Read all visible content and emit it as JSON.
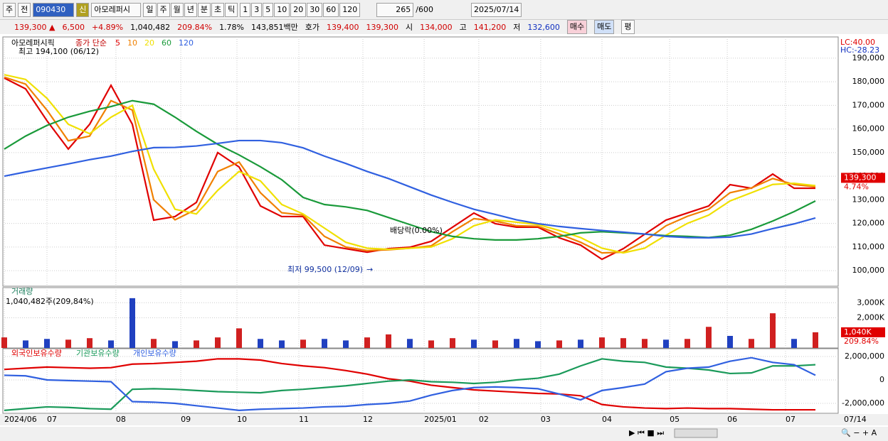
{
  "toolbar": {
    "interval": "주",
    "prev": "전",
    "code": "090430",
    "badge": "신",
    "name": "아모레퍼시",
    "periods": [
      "일",
      "주",
      "월",
      "년",
      "분",
      "초",
      "틱"
    ],
    "units": [
      "1",
      "3",
      "5",
      "10",
      "20",
      "30",
      "60",
      "120"
    ],
    "count": "265",
    "max": "/600",
    "date": "2025/07/14"
  },
  "quote": {
    "price": "139,300 ▲",
    "change": "6,500",
    "rate": "+4.89%",
    "volume": "1,040,482",
    "vol_ratio": "209.84%",
    "turnover": "1.78%",
    "amount": "143,851백만",
    "ask_label": "호가",
    "ask": "139,400",
    "bid": "139,300",
    "open_label": "시",
    "open": "134,000",
    "high_label": "고",
    "high": "141,200",
    "low_label": "저",
    "low": "132,600",
    "buy": "매수",
    "sell": "매도",
    "avg": "평"
  },
  "chart_data": [
    {
      "type": "line",
      "title": "아모레퍼시픽",
      "legend_label": "종가 단순",
      "scale_labels": [
        "LC:40.00",
        "HC:-28.23"
      ],
      "annotations": {
        "high": "최고 194,100 (06/12)",
        "low": "최저 99,500 (12/09)",
        "dividend": "배당락(0.00%)"
      },
      "current": {
        "value": 139300,
        "label": "139,300",
        "change": "4.74%"
      },
      "xlim": [
        0,
        38
      ],
      "x_current_label": "07/14",
      "xticks": [
        {
          "value": 0,
          "label": "2024/06"
        },
        {
          "value": 2,
          "label": "07"
        },
        {
          "value": 5.23,
          "label": "08"
        },
        {
          "value": 8.27,
          "label": "09"
        },
        {
          "value": 10.9,
          "label": "10"
        },
        {
          "value": 13.8,
          "label": "11"
        },
        {
          "value": 16.8,
          "label": "12"
        },
        {
          "value": 19.67,
          "label": "2025/01"
        },
        {
          "value": 22.23,
          "label": "02"
        },
        {
          "value": 25.13,
          "label": "03"
        },
        {
          "value": 28,
          "label": "04"
        },
        {
          "value": 31.17,
          "label": "05"
        },
        {
          "value": 33.87,
          "label": "06"
        },
        {
          "value": 36.6,
          "label": "07"
        }
      ],
      "ylim": [
        93400,
        199000
      ],
      "yticks": [
        {
          "value": 100000,
          "label": "100,000"
        },
        {
          "value": 110000,
          "label": "110,000"
        },
        {
          "value": 120000,
          "label": "120,000"
        },
        {
          "value": 130000,
          "label": "130,000"
        },
        {
          "value": 140000,
          "label": "140,000"
        },
        {
          "value": 150000,
          "label": "150,000"
        },
        {
          "value": 160000,
          "label": "160,000"
        },
        {
          "value": 170000,
          "label": "170,000"
        },
        {
          "value": 180000,
          "label": "180,000"
        },
        {
          "value": 190000,
          "label": "190,000"
        }
      ],
      "grid": true,
      "series": [
        {
          "name": "5",
          "color": "#e00000",
          "values": [
            181600,
            177000,
            163500,
            151500,
            162000,
            178500,
            162000,
            121400,
            122900,
            128900,
            150000,
            143900,
            127400,
            122900,
            122900,
            110800,
            109300,
            107800,
            109300,
            109900,
            112400,
            118400,
            124400,
            119900,
            118400,
            118400,
            113900,
            110800,
            104800,
            109300,
            115400,
            121400,
            124400,
            127400,
            136400,
            134900,
            140900,
            134900,
            134900
          ]
        },
        {
          "name": "10",
          "color": "#f08000",
          "values": [
            182000,
            179000,
            168000,
            155000,
            157000,
            172000,
            168000,
            130000,
            121500,
            126000,
            142000,
            146000,
            133000,
            124500,
            123500,
            114500,
            110000,
            108500,
            108800,
            109500,
            110500,
            116500,
            122000,
            121000,
            119000,
            118800,
            115500,
            112000,
            107500,
            107800,
            112500,
            119000,
            123000,
            126000,
            133000,
            135000,
            139000,
            136500,
            135500
          ]
        },
        {
          "name": "20",
          "color": "#f0e000",
          "values": [
            183000,
            181000,
            173000,
            162000,
            158000,
            165000,
            170000,
            143000,
            126000,
            124000,
            134000,
            142000,
            138000,
            128000,
            124000,
            118000,
            112000,
            109500,
            109000,
            109500,
            110000,
            113500,
            119000,
            121500,
            120500,
            119500,
            117000,
            114000,
            109500,
            107500,
            109500,
            115000,
            120000,
            123500,
            129500,
            133000,
            136500,
            137000,
            136000
          ]
        },
        {
          "name": "60",
          "color": "#1a9a3a",
          "values": [
            151500,
            157000,
            161500,
            165000,
            167500,
            169500,
            172000,
            170500,
            165000,
            159000,
            153500,
            149000,
            144000,
            138500,
            131000,
            128000,
            127000,
            125500,
            122500,
            119500,
            116500,
            114500,
            113500,
            113000,
            113000,
            113500,
            114500,
            116000,
            116500,
            116000,
            115500,
            114800,
            114500,
            114000,
            115000,
            117500,
            121000,
            125000,
            129500
          ]
        },
        {
          "name": "120",
          "color": "#3060e0",
          "values": [
            140000,
            141800,
            143500,
            145200,
            147000,
            148500,
            150500,
            152100,
            152200,
            152800,
            153900,
            155100,
            155100,
            154200,
            152000,
            148500,
            145400,
            142000,
            139000,
            135500,
            132000,
            128900,
            126000,
            123800,
            121500,
            119900,
            118700,
            117800,
            117000,
            116300,
            115500,
            114500,
            114000,
            113900,
            114200,
            115500,
            117800,
            119800,
            122300
          ]
        }
      ]
    },
    {
      "type": "bar",
      "title": "거래량",
      "subtitle": "1,040,482주(209,84%)",
      "xlim": [
        0,
        38
      ],
      "ylim": [
        0,
        4000
      ],
      "yticks": [
        {
          "value": 3000,
          "label": "3,000K"
        },
        {
          "value": 2000,
          "label": "2,000K"
        }
      ],
      "current": {
        "value": 1040,
        "label": "1,040K",
        "ratio": "209.84%"
      },
      "grid": true,
      "up_color": "#d02020",
      "down_color": "#2040c0",
      "values": [
        700,
        500,
        600,
        550,
        650,
        500,
        3300,
        600,
        450,
        500,
        700,
        1300,
        600,
        500,
        550,
        600,
        500,
        700,
        900,
        600,
        500,
        650,
        550,
        500,
        600,
        450,
        500,
        550,
        700,
        650,
        600,
        550,
        600,
        1400,
        800,
        600,
        2300,
        600,
        1040
      ],
      "up": [
        true,
        false,
        false,
        true,
        true,
        false,
        false,
        true,
        false,
        true,
        true,
        true,
        false,
        false,
        true,
        false,
        false,
        true,
        true,
        false,
        true,
        true,
        false,
        true,
        false,
        false,
        true,
        false,
        true,
        true,
        true,
        false,
        true,
        true,
        false,
        true,
        true,
        false,
        true
      ]
    },
    {
      "type": "line",
      "xlim": [
        0,
        38
      ],
      "ylim": [
        -2850000,
        2670000
      ],
      "grid": true,
      "yticks": [
        {
          "value": 2000000,
          "label": "2,000,000"
        },
        0,
        {
          "value": -2000000,
          "label": "-2,000,000"
        }
      ],
      "series": [
        {
          "name": "외국인보유수량",
          "color": "#e00000",
          "values": [
            900000,
            1000000,
            1100000,
            1050000,
            1000000,
            1050000,
            1350000,
            1400000,
            1500000,
            1600000,
            1800000,
            1800000,
            1700000,
            1400000,
            1200000,
            1050000,
            800000,
            500000,
            100000,
            -100000,
            -450000,
            -650000,
            -850000,
            -950000,
            -1050000,
            -1150000,
            -1200000,
            -1350000,
            -2100000,
            -2300000,
            -2400000,
            -2450000,
            -2400000,
            -2450000,
            -2450000,
            -2500000,
            -2550000,
            -2550000,
            -2550000
          ]
        },
        {
          "name": "기관보유수량",
          "color": "#1a9a5a",
          "values": [
            -2600000,
            -2450000,
            -2300000,
            -2350000,
            -2450000,
            -2500000,
            -800000,
            -750000,
            -800000,
            -900000,
            -1000000,
            -1050000,
            -1100000,
            -900000,
            -800000,
            -650000,
            -500000,
            -300000,
            -100000,
            0,
            -150000,
            -200000,
            -300000,
            -200000,
            0,
            150000,
            500000,
            1200000,
            1800000,
            1600000,
            1500000,
            1100000,
            1000000,
            850000,
            550000,
            600000,
            1200000,
            1200000,
            1300000
          ]
        },
        {
          "name": "개인보유수량",
          "color": "#3060e0",
          "values": [
            400000,
            350000,
            0,
            -50000,
            -100000,
            -150000,
            -1850000,
            -1900000,
            -2000000,
            -2200000,
            -2400000,
            -2600000,
            -2500000,
            -2450000,
            -2400000,
            -2300000,
            -2250000,
            -2100000,
            -2000000,
            -1800000,
            -1300000,
            -900000,
            -650000,
            -600000,
            -650000,
            -750000,
            -1200000,
            -1700000,
            -900000,
            -650000,
            -350000,
            700000,
            1000000,
            1100000,
            1600000,
            1900000,
            1500000,
            1300000,
            400000
          ]
        }
      ]
    }
  ]
}
